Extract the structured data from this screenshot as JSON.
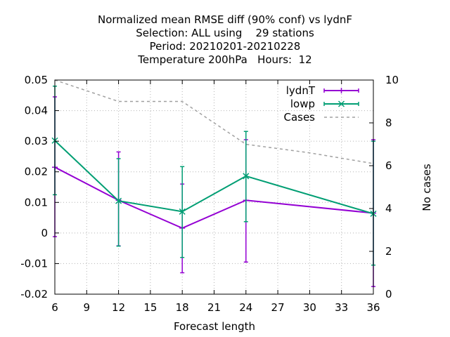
{
  "chart_data": {
    "type": "line",
    "title_lines": [
      "Normalized mean RMSE diff (90% conf) vs lydnF",
      "Selection: ALL using    29 stations",
      "Period: 20210201-20210228",
      "Temperature 200hPa   Hours:  12"
    ],
    "xlabel": "Forecast length",
    "ylabel": "",
    "y2label": "No cases",
    "xlim": [
      6,
      36
    ],
    "ylim": [
      -0.02,
      0.05
    ],
    "y2lim": [
      0,
      10
    ],
    "x_ticks": [
      6,
      9,
      12,
      15,
      18,
      21,
      24,
      27,
      30,
      33,
      36
    ],
    "x_tick_labels": [
      "6",
      "9",
      "12",
      "15",
      "18",
      "21",
      "24",
      "27",
      "30",
      "33",
      "36"
    ],
    "y_ticks": [
      -0.02,
      -0.01,
      0,
      0.01,
      0.02,
      0.03,
      0.04,
      0.05
    ],
    "y_tick_labels": [
      "-0.02",
      "-0.01",
      "0",
      "0.01",
      "0.02",
      "0.03",
      "0.04",
      "0.05"
    ],
    "y2_ticks": [
      0,
      2,
      4,
      6,
      8,
      10
    ],
    "y2_tick_labels": [
      "0",
      "2",
      "4",
      "6",
      "8",
      "10"
    ],
    "grid": true,
    "legend_position": "top-right",
    "series": [
      {
        "name": "lydnT",
        "color": "#9400d3",
        "marker": "plus",
        "x": [
          6,
          12,
          18,
          24,
          36
        ],
        "y": [
          0.0215,
          0.0107,
          0.0016,
          0.0107,
          0.0065
        ],
        "err_low": [
          -0.0012,
          -0.0042,
          -0.013,
          -0.0095,
          -0.0175
        ],
        "err_high": [
          0.0445,
          0.0265,
          0.016,
          0.0305,
          0.0305
        ]
      },
      {
        "name": "lowp",
        "color": "#009e73",
        "marker": "cross",
        "x": [
          6,
          12,
          18,
          24,
          36
        ],
        "y": [
          0.0302,
          0.0105,
          0.007,
          0.0186,
          0.0063
        ],
        "err_low": [
          0.0125,
          -0.0043,
          -0.008,
          0.0037,
          -0.0105
        ],
        "err_high": [
          0.048,
          0.0243,
          0.0217,
          0.0332,
          0.03
        ]
      },
      {
        "name": "Cases",
        "color": "#a0a0a0",
        "axis": "y2",
        "dashed": true,
        "x": [
          6,
          12,
          18,
          24,
          30,
          36
        ],
        "y": [
          10,
          9,
          9,
          7,
          6.6,
          6.1
        ]
      }
    ]
  }
}
